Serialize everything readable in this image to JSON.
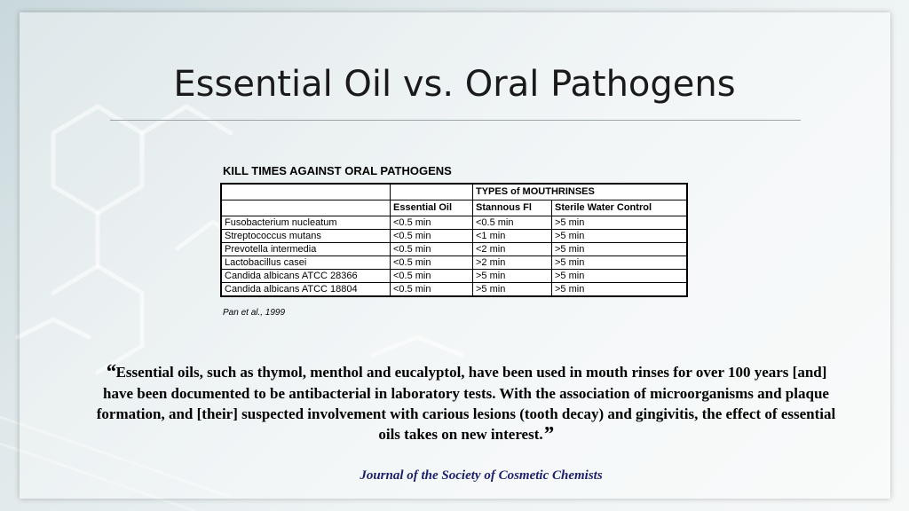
{
  "slide": {
    "title": "Essential Oil vs. Oral Pathogens",
    "table": {
      "caption": "KILL TIMES AGAINST ORAL PATHOGENS",
      "group_header": "TYPES of MOUTHRINSES",
      "columns": [
        "Essential Oil",
        "Stannous Fl",
        "Sterile Water Control"
      ],
      "rows": [
        {
          "pathogen": "Fusobacterium nucleatum",
          "values": [
            "<0.5 min",
            "<0.5 min",
            ">5 min"
          ]
        },
        {
          "pathogen": "Streptococcus mutans",
          "values": [
            "<0.5 min",
            "<1 min",
            ">5 min"
          ]
        },
        {
          "pathogen": "Prevotella intermedia",
          "values": [
            "<0.5 min",
            "<2 min",
            ">5 min"
          ]
        },
        {
          "pathogen": "Lactobacillus casei",
          "values": [
            "<0.5 min",
            ">2 min",
            ">5 min"
          ]
        },
        {
          "pathogen": "Candida albicans  ATCC 28366",
          "values": [
            "<0.5 min",
            ">5 min",
            ">5 min"
          ]
        },
        {
          "pathogen": "Candida albicans  ATCC 18804",
          "values": [
            "<0.5 min",
            ">5 min",
            ">5 min"
          ]
        }
      ]
    },
    "table_citation": "Pan et al., 1999",
    "quote": {
      "open_mark": "“",
      "text": "Essential oils, such as thymol, menthol and eucalyptol, have been used in mouth rinses for over 100 years [and] have been documented to be antibacterial in laboratory tests. With the association of microorganisms and plaque formation, and [their] suspected involvement with carious lesions (tooth decay) and gingivitis, the effect of essential oils takes on new interest.",
      "close_mark": "”"
    },
    "source": "Journal of the Society of Cosmetic Chemists"
  },
  "colors": {
    "title": "#1a1a1a",
    "source": "#1b1f6b",
    "background": "#dfe8ea"
  }
}
